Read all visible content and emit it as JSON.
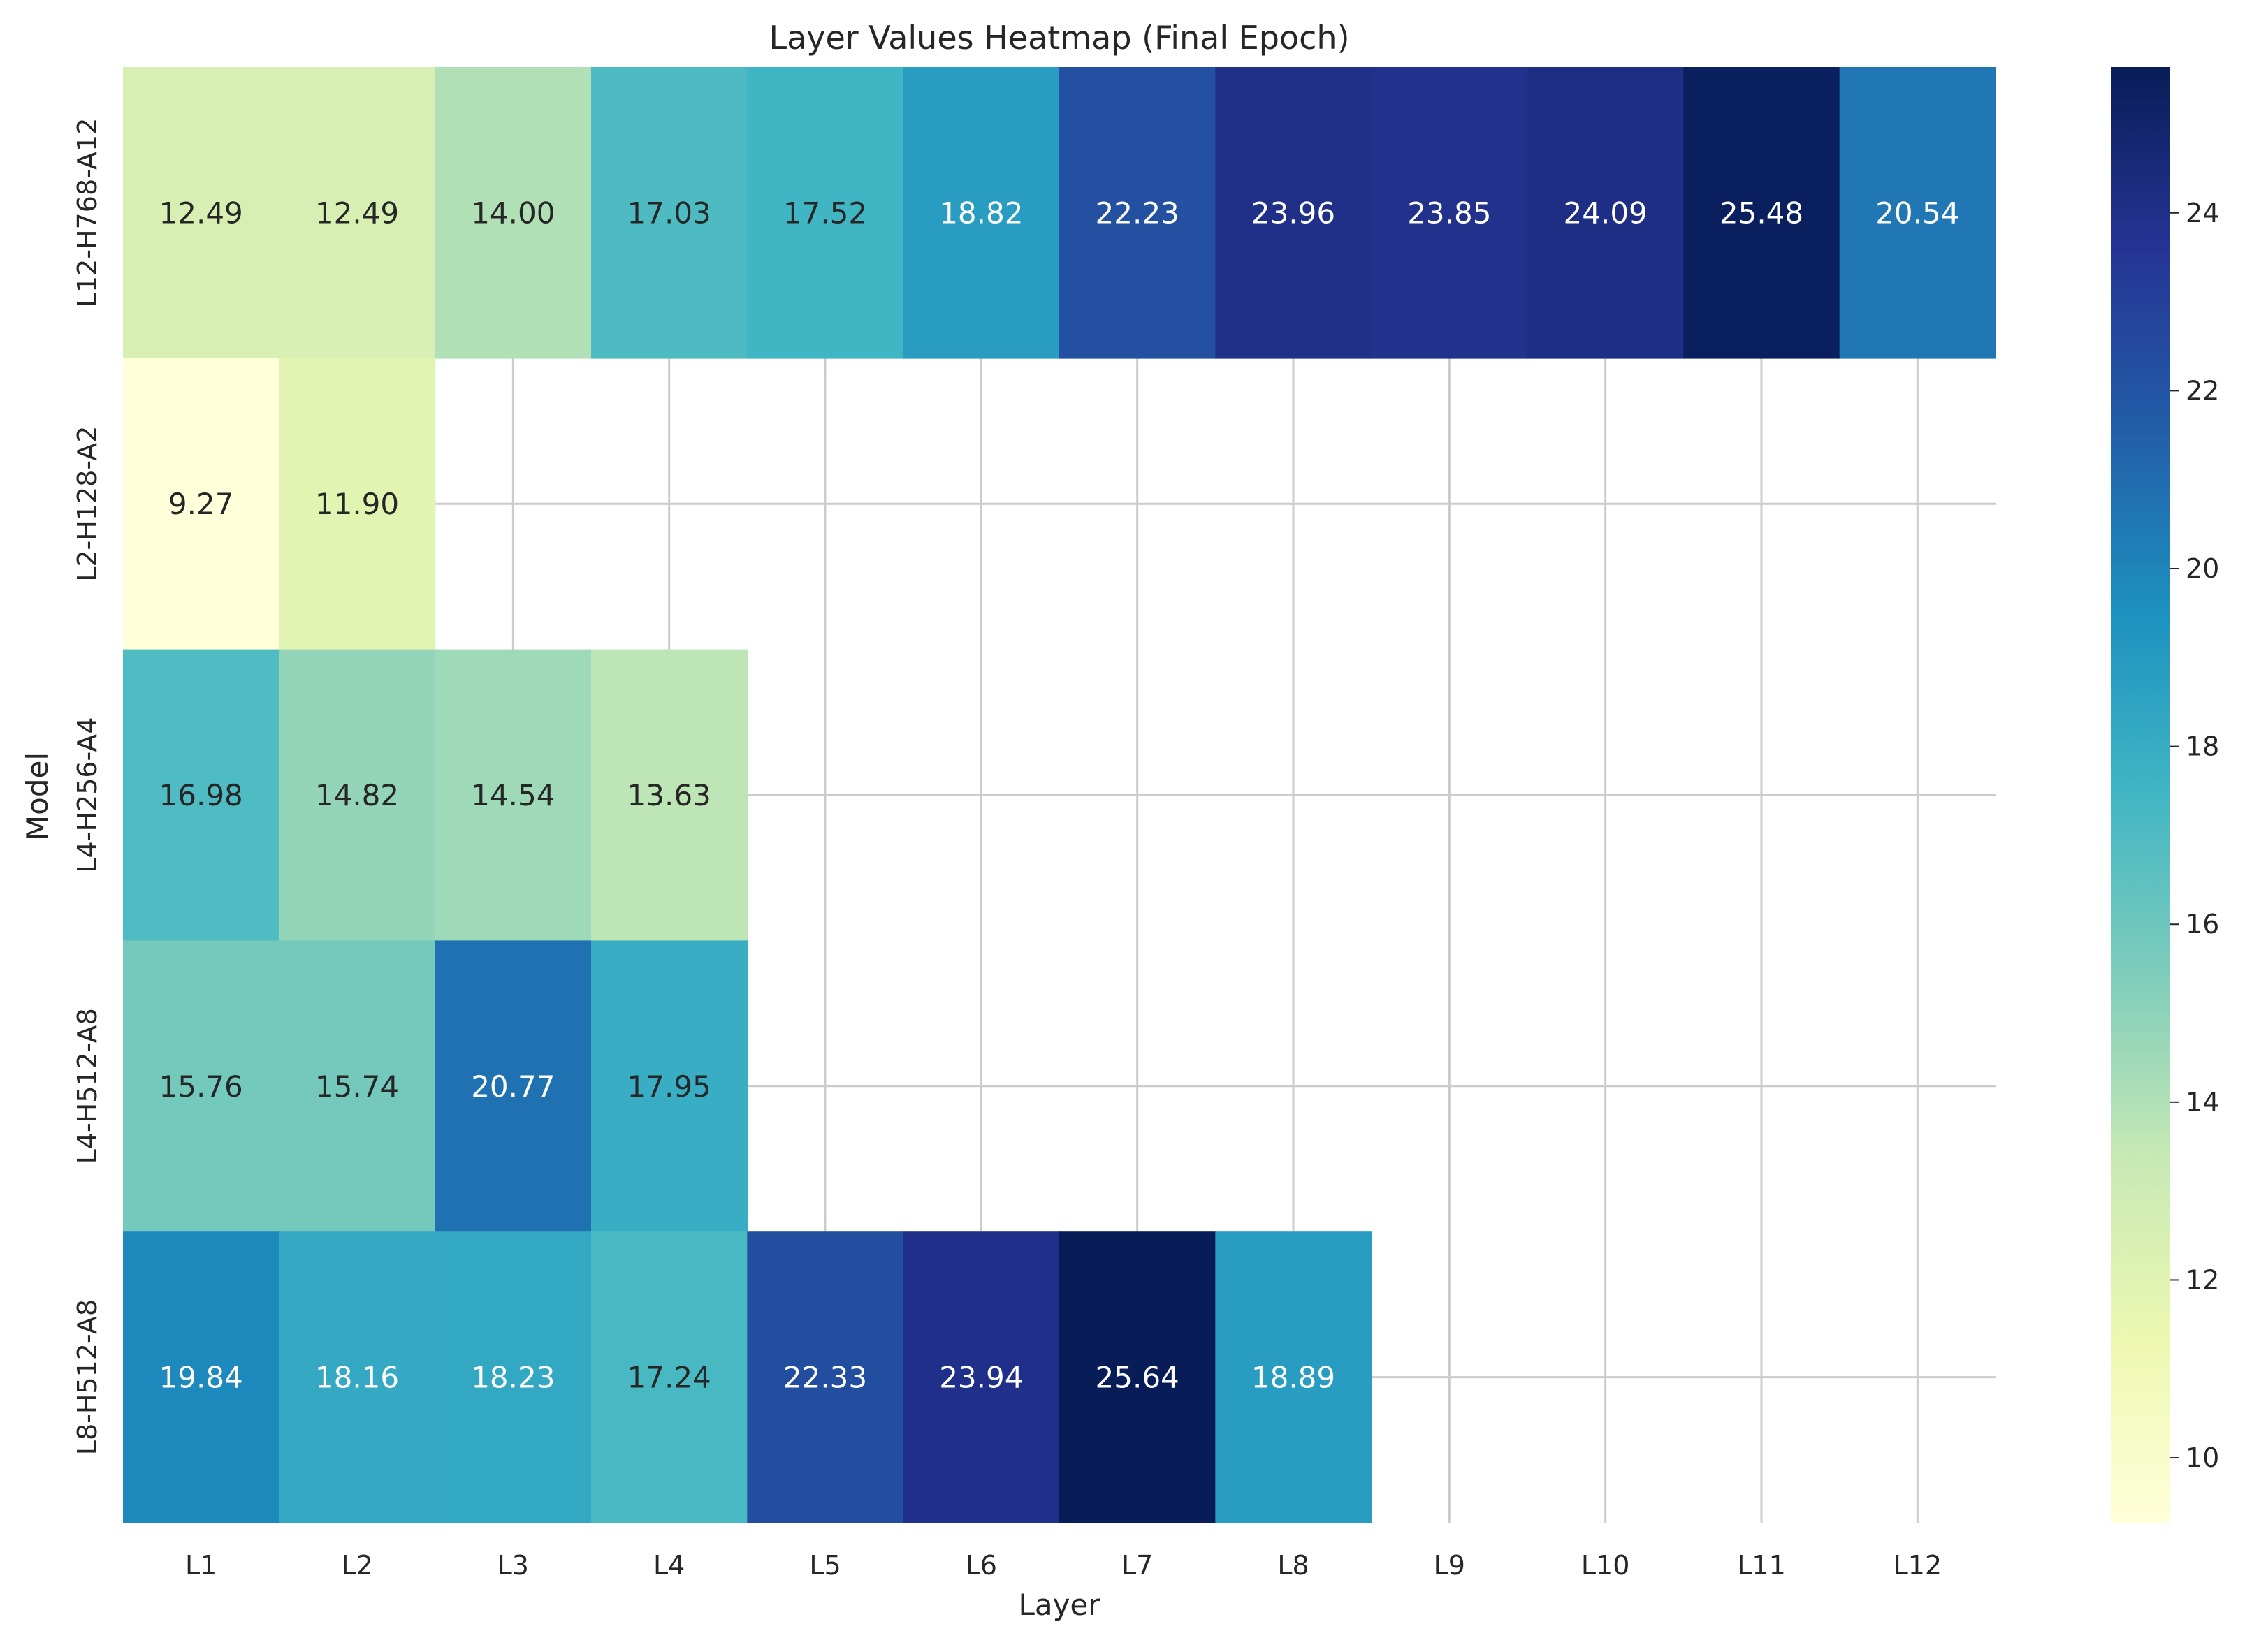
{
  "chart_data": {
    "type": "heatmap",
    "title": "Layer Values Heatmap (Final Epoch)",
    "xlabel": "Layer",
    "ylabel": "Model",
    "x_categories": [
      "L1",
      "L2",
      "L3",
      "L4",
      "L5",
      "L6",
      "L7",
      "L8",
      "L9",
      "L10",
      "L11",
      "L12"
    ],
    "y_categories": [
      "L12-H768-A12",
      "L2-H128-A2",
      "L4-H256-A4",
      "L4-H512-A8",
      "L8-H512-A8"
    ],
    "values": [
      [
        12.49,
        12.49,
        14.0,
        17.03,
        17.52,
        18.82,
        22.23,
        23.96,
        23.85,
        24.09,
        25.48,
        20.54
      ],
      [
        9.27,
        11.9,
        null,
        null,
        null,
        null,
        null,
        null,
        null,
        null,
        null,
        null
      ],
      [
        16.98,
        14.82,
        14.54,
        13.63,
        null,
        null,
        null,
        null,
        null,
        null,
        null,
        null
      ],
      [
        15.76,
        15.74,
        20.77,
        17.95,
        null,
        null,
        null,
        null,
        null,
        null,
        null,
        null
      ],
      [
        19.84,
        18.16,
        18.23,
        17.24,
        22.33,
        23.94,
        25.64,
        18.89,
        null,
        null,
        null,
        null
      ]
    ],
    "value_format": "2 decimals",
    "colorbar": {
      "colormap": "YlGnBu",
      "vmin": 9.27,
      "vmax": 25.64,
      "ticks": [
        10,
        12,
        14,
        16,
        18,
        20,
        22,
        24
      ]
    },
    "grid": true
  }
}
